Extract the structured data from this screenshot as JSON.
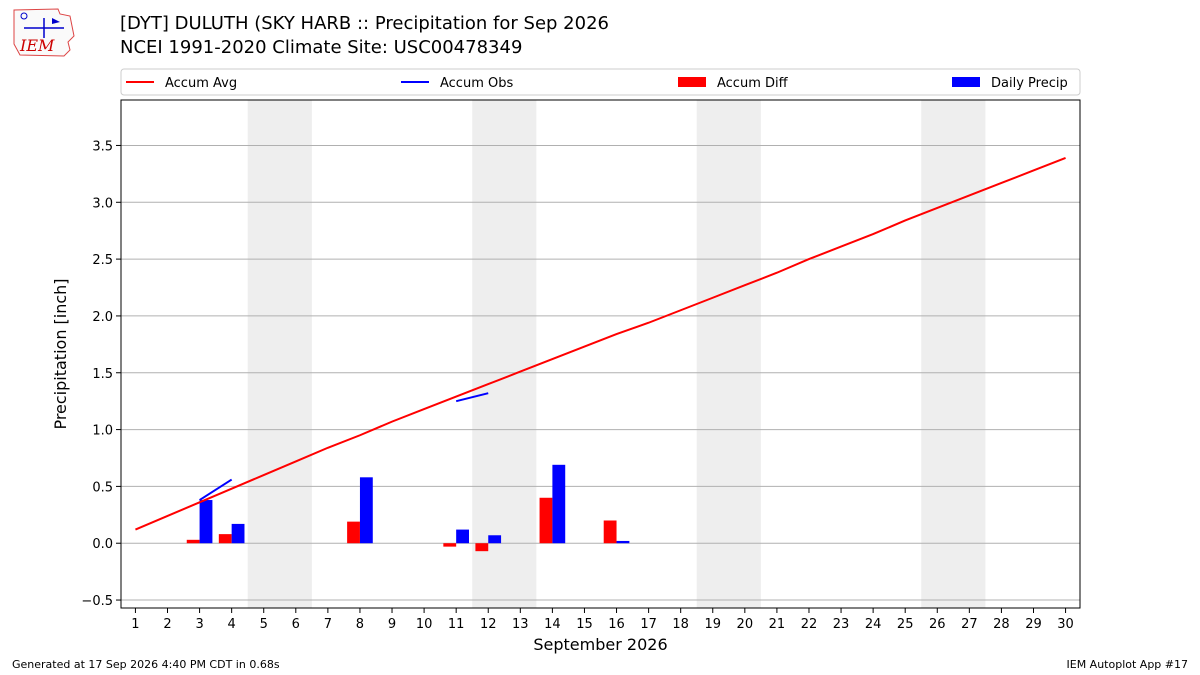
{
  "header": {
    "title_line1": "[DYT] DULUTH (SKY HARB :: Precipitation for Sep 2026",
    "title_line2": "NCEI 1991-2020 Climate Site: USC00478349",
    "logo_text": "IEM"
  },
  "footer": {
    "generated": "Generated at 17 Sep 2026 4:40 PM CDT in 0.68s",
    "app": "IEM Autoplot App #17"
  },
  "chart_data": {
    "type": "bar",
    "xlabel": "September 2026",
    "ylabel": "Precipitation [inch]",
    "x": [
      1,
      2,
      3,
      4,
      5,
      6,
      7,
      8,
      9,
      10,
      11,
      12,
      13,
      14,
      15,
      16,
      17,
      18,
      19,
      20,
      21,
      22,
      23,
      24,
      25,
      26,
      27,
      28,
      29,
      30
    ],
    "ylim": [
      -0.57,
      3.9
    ],
    "yticks": [
      -0.5,
      0.0,
      0.5,
      1.0,
      1.5,
      2.0,
      2.5,
      3.0,
      3.5
    ],
    "ytick_labels": [
      "−0.5",
      "0.0",
      "0.5",
      "1.0",
      "1.5",
      "2.0",
      "2.5",
      "3.0",
      "3.5"
    ],
    "grid": "horizontal",
    "legend_position": "top",
    "weekend_bands": [
      [
        5,
        6
      ],
      [
        12,
        13
      ],
      [
        19,
        20
      ],
      [
        26,
        27
      ]
    ],
    "series": [
      {
        "name": "Accum Avg",
        "kind": "line",
        "color": "#ff0000",
        "x": [
          1,
          2,
          3,
          4,
          5,
          6,
          7,
          8,
          9,
          10,
          11,
          12,
          13,
          14,
          15,
          16,
          17,
          18,
          19,
          20,
          21,
          22,
          23,
          24,
          25,
          26,
          27,
          28,
          29,
          30
        ],
        "values": [
          0.12,
          0.24,
          0.36,
          0.48,
          0.6,
          0.72,
          0.84,
          0.95,
          1.07,
          1.18,
          1.29,
          1.4,
          1.51,
          1.62,
          1.73,
          1.84,
          1.94,
          2.05,
          2.16,
          2.27,
          2.38,
          2.5,
          2.61,
          2.72,
          2.84,
          2.95,
          3.06,
          3.17,
          3.28,
          3.39
        ]
      },
      {
        "name": "Accum Obs",
        "kind": "line",
        "color": "#0000ff",
        "segments": [
          {
            "x": [
              3,
              4
            ],
            "values": [
              0.38,
              0.56
            ]
          },
          {
            "x": [
              11,
              12
            ],
            "values": [
              1.25,
              1.32
            ]
          }
        ]
      },
      {
        "name": "Accum Diff",
        "kind": "bar",
        "color": "#ff0000",
        "x": [
          3,
          4,
          8,
          11,
          12,
          14,
          16
        ],
        "values": [
          0.03,
          0.08,
          0.19,
          -0.03,
          -0.07,
          0.4,
          0.2
        ]
      },
      {
        "name": "Daily Precip",
        "kind": "bar",
        "color": "#0000ff",
        "x": [
          3,
          4,
          8,
          11,
          12,
          14,
          16
        ],
        "values": [
          0.38,
          0.17,
          0.58,
          0.12,
          0.07,
          0.69,
          0.02
        ]
      }
    ]
  }
}
